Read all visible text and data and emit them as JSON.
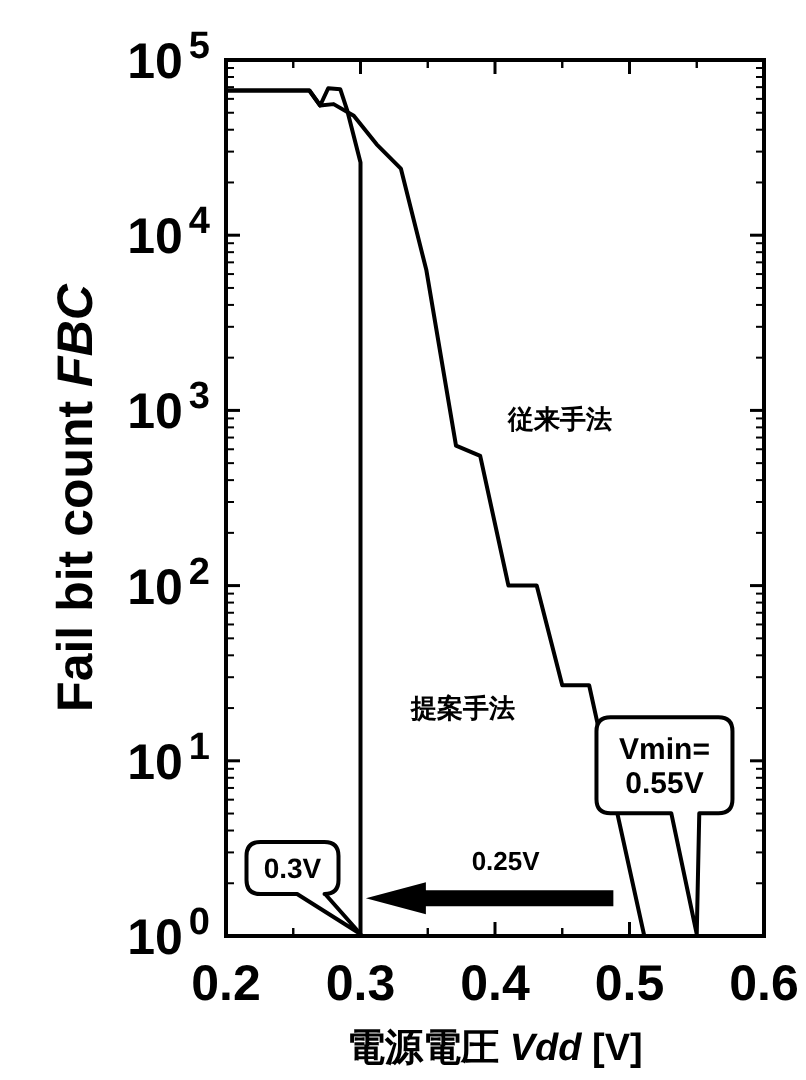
{
  "chart_data": {
    "type": "line",
    "xlabel": "電源電圧 Vdd [V]",
    "ylabel": "Fail bit count  FBC",
    "log": "y",
    "xlim": [
      0.2,
      0.6
    ],
    "ylim": [
      1,
      100000
    ],
    "xticks": [
      0.2,
      0.3,
      0.4,
      0.5,
      0.6
    ],
    "yticks": [
      {
        "value": 1,
        "label": "10$^{0}$"
      },
      {
        "value": 10,
        "label": "10$^{1}$"
      },
      {
        "value": 100,
        "label": "10$^{2}$"
      },
      {
        "value": 1000,
        "label": "10$^{3}$"
      },
      {
        "value": 10000,
        "label": "10$^{4}$"
      },
      {
        "value": 100000,
        "label": "10$^{5}$"
      }
    ],
    "grid": false,
    "marker": "none",
    "line_style": "solid",
    "series": [
      {
        "color": "#000000",
        "x": [
          0.2,
          0.262,
          0.27,
          0.276,
          0.285,
          0.29,
          0.3,
          0.3
        ],
        "values": [
          67000,
          67000,
          55000,
          69000,
          68000,
          52000,
          26000,
          1
        ]
      },
      {
        "color": "#000000",
        "x": [
          0.2,
          0.262,
          0.27,
          0.28,
          0.295,
          0.312,
          0.33,
          0.349,
          0.371,
          0.389,
          0.41,
          0.431,
          0.45,
          0.47,
          0.511,
          0.53
        ],
        "values": [
          67000,
          67000,
          55000,
          56000,
          48000,
          33000,
          24000,
          6300,
          630,
          550,
          100,
          100,
          27,
          27,
          1,
          1
        ]
      }
    ],
    "annotations": [
      "従来手法",
      "提案手法",
      {
        "text": "0.3V",
        "x": 0.3,
        "y": 1
      },
      "Vmin=\n0.55V",
      "0.25V"
    ]
  }
}
